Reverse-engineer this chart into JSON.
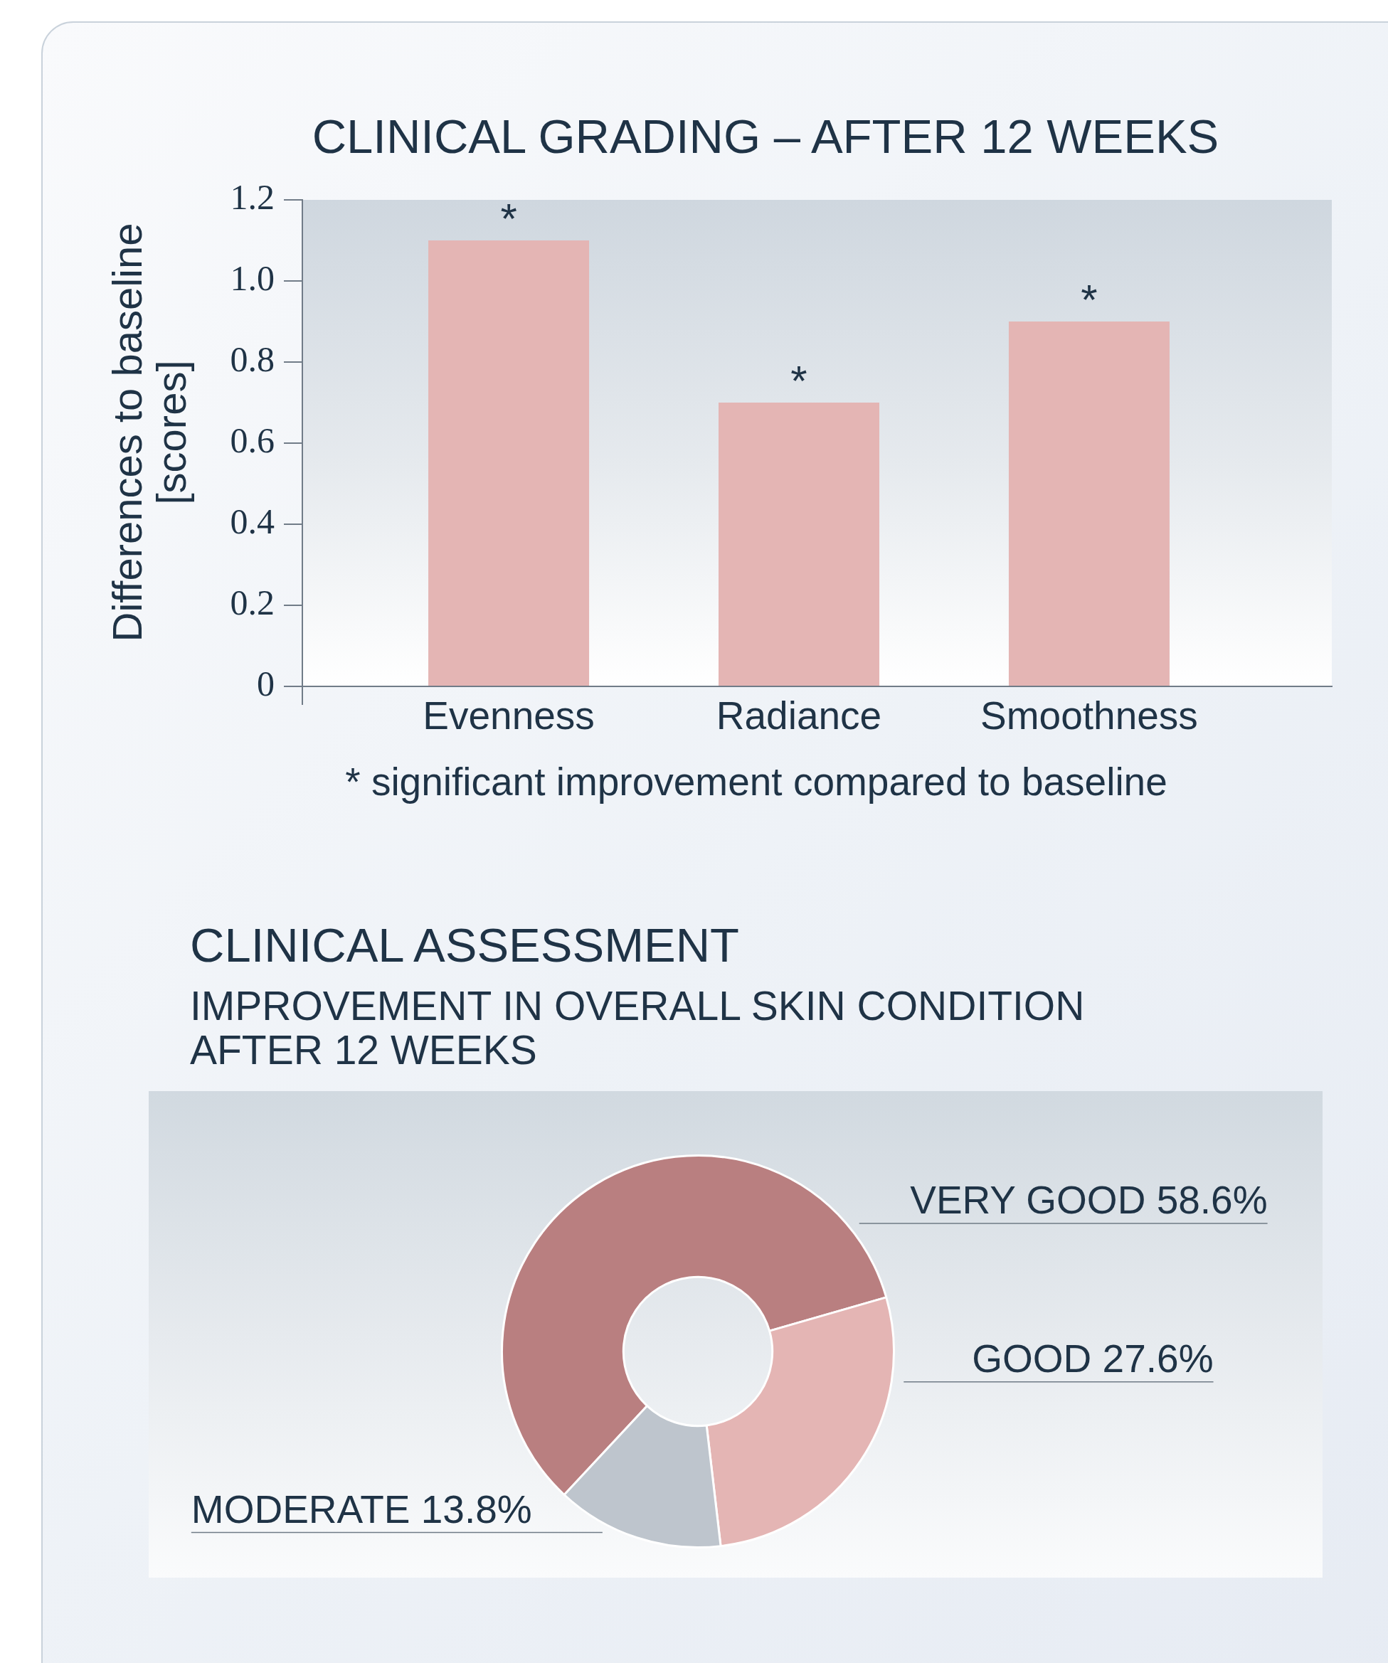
{
  "chart_data": [
    {
      "type": "bar",
      "title": "CLINICAL GRADING – AFTER 12 WEEKS",
      "ylabel": "Differences to baseline [scores]",
      "categories": [
        "Evenness",
        "Radiance",
        "Smoothness"
      ],
      "values": [
        1.1,
        0.7,
        0.9
      ],
      "color": "#e4b5b4",
      "ylim": [
        0,
        1.2
      ],
      "yticks": [
        0,
        0.2,
        0.4,
        0.6,
        0.8,
        {
          "value": 1,
          "label": "1.0"
        },
        1.2
      ],
      "grid": false,
      "annotations": [
        {
          "text": "*",
          "x": "Evenness",
          "y": 1.1
        },
        {
          "text": "*",
          "x": "Radiance",
          "y": 0.7
        },
        {
          "text": "*",
          "x": "Smoothness",
          "y": 0.9
        },
        "* significant improvement compared to baseline"
      ]
    },
    {
      "type": "donut",
      "title": "CLINICAL ASSESSMENT",
      "subtitle": "IMPROVEMENT IN OVERALL SKIN CONDITION AFTER 12 WEEKS",
      "categories": [
        "VERY GOOD",
        "GOOD",
        "MODERATE"
      ],
      "values": [
        58.6,
        27.6,
        13.8
      ],
      "colors": [
        "#b97f80",
        "#e4b5b4",
        "#bec5cd"
      ],
      "value_labels": [
        "58.6%",
        "27.6%",
        "13.8%"
      ]
    }
  ]
}
